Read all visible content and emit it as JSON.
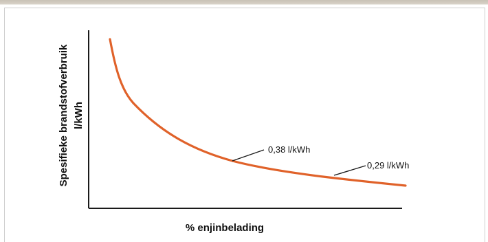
{
  "chart_data": {
    "type": "line",
    "title": "",
    "xlabel": "% enjinbelading",
    "ylabel": "Spesifieke brandstofverbruik",
    "ylabel_unit": "l/kWh",
    "grid": false,
    "legend": "none",
    "curve_color": "#e0622a",
    "annotations": [
      {
        "text": "0,38 l/kWh",
        "value": 0.38
      },
      {
        "text": "0,29 l/kWh",
        "value": 0.29
      }
    ]
  }
}
